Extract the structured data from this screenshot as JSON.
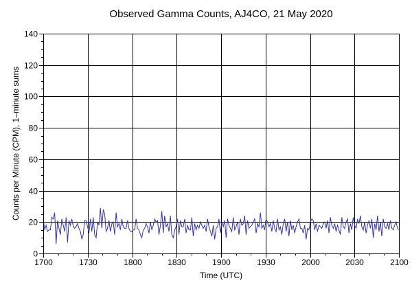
{
  "chart_data": {
    "type": "line",
    "title": "Observed Gamma Counts, AJ4CO, 21 May 2020",
    "xlabel": "Time (UTC)",
    "ylabel": "Counts per Minute (CPM), 1–minute sums",
    "x_ticks": [
      "1700",
      "1730",
      "1800",
      "1830",
      "1900",
      "1930",
      "2000",
      "2030",
      "2100"
    ],
    "y_ticks": [
      "0",
      "20",
      "40",
      "60",
      "80",
      "100",
      "120",
      "140"
    ],
    "x_range_minutes": [
      0,
      240
    ],
    "ylim": [
      0,
      140
    ],
    "grid": true,
    "series_color": "#3333aa",
    "series": [
      {
        "values": [
          22,
          15,
          18,
          14,
          15,
          15,
          23,
          22,
          26,
          6,
          21,
          16,
          12,
          22,
          18,
          14,
          23,
          7,
          21,
          18,
          22,
          17,
          16,
          17,
          19,
          16,
          14,
          9,
          12,
          21,
          21,
          17,
          13,
          22,
          14,
          23,
          12,
          10,
          20,
          18,
          29,
          16,
          28,
          25,
          14,
          16,
          21,
          14,
          19,
          20,
          12,
          26,
          17,
          19,
          15,
          22,
          17,
          16,
          16,
          21,
          16,
          14,
          14,
          15,
          15,
          22,
          16,
          15,
          12,
          10,
          15,
          16,
          19,
          17,
          13,
          20,
          15,
          18,
          22,
          20,
          21,
          12,
          18,
          27,
          13,
          24,
          17,
          19,
          14,
          24,
          12,
          10,
          15,
          17,
          22,
          12,
          21,
          17,
          17,
          22,
          13,
          18,
          15,
          15,
          23,
          11,
          19,
          15,
          18,
          16,
          20,
          18,
          16,
          18,
          14,
          22,
          17,
          14,
          11,
          18,
          9,
          16,
          17,
          22,
          13,
          20,
          17,
          21,
          10,
          22,
          18,
          16,
          14,
          23,
          15,
          17,
          20,
          12,
          22,
          18,
          19,
          24,
          12,
          21,
          16,
          17,
          18,
          20,
          22,
          13,
          19,
          17,
          26,
          16,
          18,
          15,
          22,
          20,
          17,
          19,
          14,
          21,
          16,
          14,
          22,
          15,
          17,
          12,
          19,
          22,
          14,
          20,
          11,
          21,
          15,
          18,
          13,
          17,
          20,
          22,
          16,
          16,
          13,
          18,
          9,
          16,
          15,
          20,
          22,
          21,
          15,
          19,
          14,
          18,
          17,
          16,
          19,
          20,
          16,
          21,
          13,
          23,
          18,
          16,
          19,
          14,
          18,
          15,
          12,
          23,
          17,
          16,
          20,
          22,
          13,
          19,
          15,
          23,
          18,
          16,
          22,
          19,
          24,
          17,
          15,
          20,
          13,
          18,
          21,
          16,
          22,
          10,
          19,
          15,
          24,
          14,
          20,
          11,
          22,
          17,
          16,
          19,
          15,
          21,
          16,
          15,
          18,
          20,
          16,
          15
        ]
      }
    ]
  }
}
